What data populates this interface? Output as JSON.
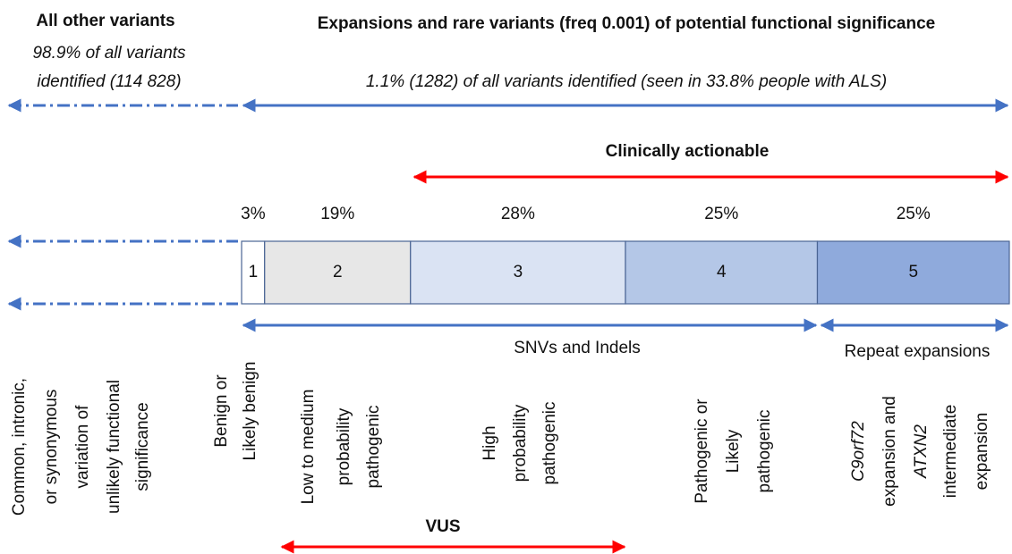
{
  "header": {
    "left_title": "All other variants",
    "left_sub": [
      "98.9% of all variants",
      "identified (114 828)"
    ],
    "right_title": "Expansions and rare variants (freq 0.001) of potential functional significance",
    "right_sub": "1.1% (1282) of all variants identified (seen in 33.8% people with ALS)"
  },
  "clinically_actionable": "Clinically actionable",
  "segments": [
    {
      "label": "1",
      "value": 3,
      "value_label": "3%",
      "color": "#ffffff"
    },
    {
      "label": "2",
      "value": 19,
      "value_label": "19%",
      "color": "#e7e7e7"
    },
    {
      "label": "3",
      "value": 28,
      "value_label": "28%",
      "color": "#dae3f3"
    },
    {
      "label": "4",
      "value": 25,
      "value_label": "25%",
      "color": "#b4c7e7"
    },
    {
      "label": "5",
      "value": 25,
      "value_label": "25%",
      "color": "#8faadc"
    }
  ],
  "groups": {
    "snv": "SNVs and Indels",
    "repeat": "Repeat expansions"
  },
  "columns": [
    {
      "lines": [
        "Common, intronic,",
        "or synonymous",
        "variation of",
        "unlikely functional",
        "significance"
      ]
    },
    {
      "lines": [
        "Benign or",
        "Likely benign"
      ]
    },
    {
      "lines": [
        "Low to medium",
        "probability",
        "pathogenic"
      ]
    },
    {
      "lines": [
        "High",
        "probability",
        "pathogenic"
      ]
    },
    {
      "lines": [
        "Pathogenic or",
        "Likely",
        "pathogenic"
      ]
    },
    {
      "lines": [
        "C9orf72",
        "expansion and",
        "ATXN2",
        "intermediate",
        "expansion"
      ]
    }
  ],
  "vus": "VUS"
}
